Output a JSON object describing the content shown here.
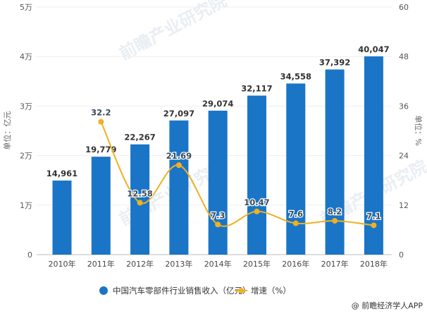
{
  "chart_data": {
    "type": "bar",
    "categories": [
      "2010年",
      "2011年",
      "2012年",
      "2013年",
      "2014年",
      "2015年",
      "2016年",
      "2017年",
      "2018年"
    ],
    "series": [
      {
        "name": "中国汽车零部件行业销售收入（亿元）",
        "type": "bar",
        "axis": "left",
        "color": "#1a75c6",
        "values": [
          14961,
          19779,
          22267,
          27097,
          29074,
          32117,
          34558,
          37392,
          40047
        ],
        "labels": [
          "14,961",
          "19,779",
          "22,267",
          "27,097",
          "29,074",
          "32,117",
          "34,558",
          "37,392",
          "40,047"
        ]
      },
      {
        "name": "增速（%）",
        "type": "line",
        "axis": "right",
        "color": "#f0b022",
        "smooth": true,
        "values": [
          null,
          32.2,
          12.58,
          21.69,
          7.3,
          10.47,
          7.6,
          8.2,
          7.1
        ],
        "labels": [
          "",
          "32.2",
          "12.58",
          "21.69",
          "7.3",
          "10.47",
          "7.6",
          "8.2",
          "7.1"
        ]
      }
    ],
    "ylabel": "单位：亿元",
    "y2label": "单位：%",
    "ylim": [
      0,
      50000
    ],
    "y2lim": [
      0,
      60
    ],
    "yticks": [
      "0",
      "1万",
      "2万",
      "3万",
      "4万",
      "5万"
    ],
    "y2ticks": [
      "0",
      "12",
      "24",
      "36",
      "48",
      "60"
    ],
    "grid": true,
    "legend": "bottom"
  },
  "source": "@ 前瞻经济学人APP",
  "watermark": "前瞻产业研究院"
}
